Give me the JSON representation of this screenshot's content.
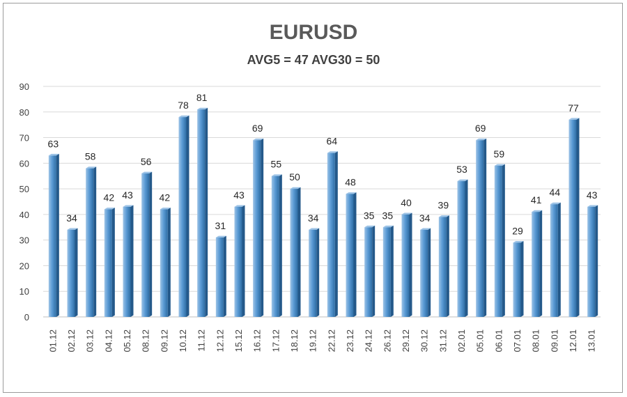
{
  "chart_data": {
    "type": "bar",
    "title": "EURUSD",
    "subtitle": "AVG5 = 47 AVG30 = 50",
    "categories": [
      "01.12",
      "02.12",
      "03.12",
      "04.12",
      "05.12",
      "08.12",
      "09.12",
      "10.12",
      "11.12",
      "12.12",
      "15.12",
      "16.12",
      "17.12",
      "18.12",
      "19.12",
      "22.12",
      "23.12",
      "24.12",
      "26.12",
      "29.12",
      "30.12",
      "31.12",
      "02.01",
      "05.01",
      "06.01",
      "07.01",
      "08.01",
      "09.01",
      "12.01",
      "13.01"
    ],
    "values": [
      63,
      34,
      58,
      42,
      43,
      56,
      42,
      78,
      81,
      31,
      43,
      69,
      55,
      50,
      34,
      64,
      48,
      35,
      35,
      40,
      34,
      39,
      53,
      69,
      59,
      29,
      41,
      44,
      77,
      43
    ],
    "ylim": [
      0,
      90
    ],
    "yticks": [
      0,
      10,
      20,
      30,
      40,
      50,
      60,
      70,
      80,
      90
    ],
    "grid": true,
    "legend": "none",
    "colors": {
      "bar": "#5b9bd5",
      "bar_light": "#9dc3e6",
      "bar_dark": "#2e6da4",
      "grid": "#d9d9d9"
    }
  }
}
